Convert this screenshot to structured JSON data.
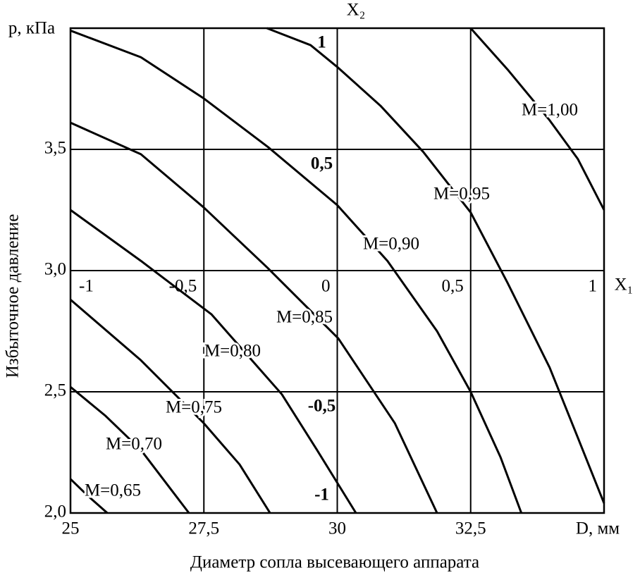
{
  "chart_data": {
    "type": "contour",
    "ylabel_top": "p, кПа",
    "xlabel_end": "D, мм",
    "xlabel": "Диаметр сопла высевающего аппарата",
    "ylabel": "Избыточное давление",
    "x2label": "X₁",
    "y2label": "X₂",
    "xlim": [
      25,
      35
    ],
    "ylim": [
      2.0,
      4.0
    ],
    "xticks": [
      25,
      {
        "value": 27.5,
        "label": "27,5"
      },
      30,
      {
        "value": 32.5,
        "label": "32,5"
      }
    ],
    "yticks": [
      {
        "value": 2.0,
        "label": "2,0"
      },
      {
        "value": 2.5,
        "label": "2,5"
      },
      {
        "value": 3.0,
        "label": "3,0"
      },
      {
        "value": 3.5,
        "label": "3,5"
      }
    ],
    "x2lim": [
      -1,
      1
    ],
    "x2ticks": [
      -1,
      {
        "value": -0.5,
        "label": "-0,5"
      },
      0,
      {
        "value": 0.5,
        "label": "0,5"
      },
      1
    ],
    "y2lim": [
      -1,
      1
    ],
    "y2ticks": [
      -1,
      {
        "value": -0.5,
        "label": "-0,5"
      },
      {
        "value": 0.5,
        "label": "0,5"
      },
      1
    ],
    "grid": true,
    "series": [
      {
        "name": "M=0,65",
        "color": "#000000",
        "x": [
          25,
          25.33,
          25.69
        ],
        "values": [
          2.14,
          2.07,
          2.0
        ]
      },
      {
        "name": "M=0,70",
        "color": "#000000",
        "x": [
          25,
          25.66,
          26.32,
          27.22
        ],
        "values": [
          2.52,
          2.4,
          2.26,
          2.0
        ]
      },
      {
        "name": "M=0,75",
        "color": "#000000",
        "x": [
          25,
          26.32,
          27.5,
          28.17,
          28.74
        ],
        "values": [
          2.88,
          2.63,
          2.37,
          2.2,
          2.0
        ]
      },
      {
        "name": "M=0,80",
        "color": "#000000",
        "x": [
          25,
          26.32,
          27.64,
          28.96,
          29.62,
          30.35
        ],
        "values": [
          3.25,
          3.04,
          2.82,
          2.49,
          2.26,
          2.0
        ]
      },
      {
        "name": "M=0,85",
        "color": "#000000",
        "x": [
          25,
          26.32,
          27.5,
          28.7,
          30.02,
          31.08,
          31.87
        ],
        "values": [
          3.61,
          3.48,
          3.26,
          3.01,
          2.72,
          2.37,
          2.0
        ]
      },
      {
        "name": "M=0,90",
        "color": "#000000",
        "x": [
          25,
          26.32,
          27.5,
          28.7,
          30.0,
          30.94,
          31.87,
          32.5,
          33.06,
          33.45
        ],
        "values": [
          3.99,
          3.88,
          3.71,
          3.51,
          3.27,
          3.04,
          2.75,
          2.5,
          2.23,
          2.0
        ]
      },
      {
        "name": "M=0,95",
        "color": "#000000",
        "x": [
          28.68,
          29.5,
          30.0,
          30.81,
          31.61,
          32.5,
          33.19,
          33.98,
          34.51,
          35.0
        ],
        "values": [
          4.0,
          3.93,
          3.84,
          3.68,
          3.49,
          3.24,
          2.95,
          2.6,
          2.31,
          2.04
        ]
      },
      {
        "name": "M=1,00",
        "color": "#000000",
        "x": [
          32.5,
          33.19,
          33.98,
          34.51,
          35.0
        ],
        "values": [
          4.0,
          3.83,
          3.62,
          3.46,
          3.25
        ]
      }
    ]
  }
}
